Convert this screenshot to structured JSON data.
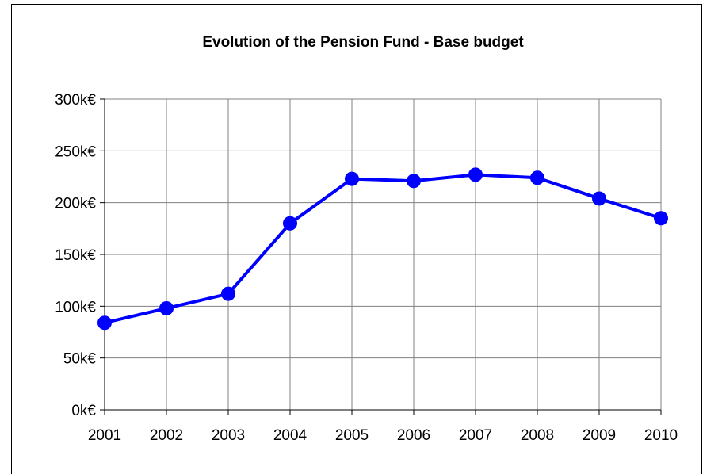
{
  "chart_data": {
    "type": "line",
    "title": "Evolution of the Pension Fund - Base budget",
    "xlabel": "",
    "ylabel": "",
    "categories": [
      "2001",
      "2002",
      "2003",
      "2004",
      "2005",
      "2006",
      "2007",
      "2008",
      "2009",
      "2010"
    ],
    "series": [
      {
        "values": [
          84,
          98,
          112,
          180,
          223,
          221,
          227,
          224,
          204,
          185
        ]
      }
    ],
    "ylim": [
      0,
      300
    ],
    "y_ticks": [
      0,
      50,
      100,
      150,
      200,
      250,
      300
    ],
    "y_tick_labels": [
      "0k€",
      "50k€",
      "100k€",
      "150k€",
      "200k€",
      "250k€",
      "300k€"
    ],
    "grid": true,
    "legend": "none",
    "colors": {
      "line": "#0000ff",
      "marker": "#0000ff",
      "grid": "#808080",
      "axis": "#000000"
    }
  }
}
